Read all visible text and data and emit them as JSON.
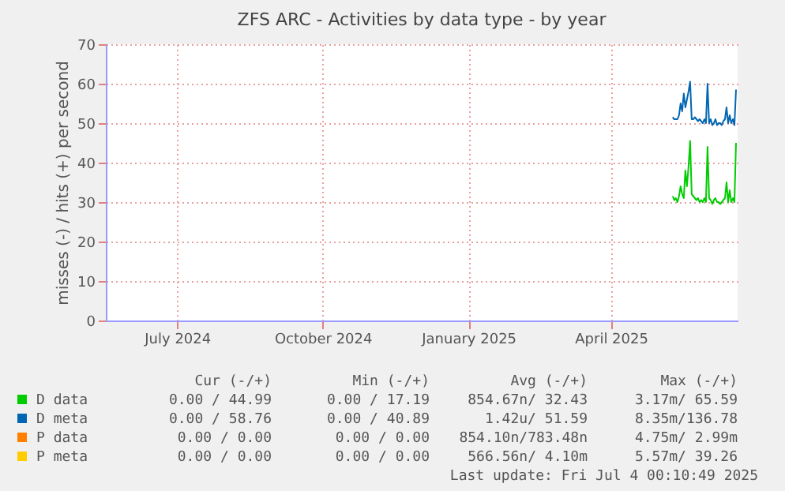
{
  "chart_data": {
    "type": "line",
    "title": "ZFS ARC - Activities by data type - by year",
    "ylabel": "misses (-) / hits (+) per second",
    "x": [
      "2025-05-25",
      "2025-05-26",
      "2025-05-27",
      "2025-05-28",
      "2025-05-29",
      "2025-05-30",
      "2025-05-31",
      "2025-06-01",
      "2025-06-02",
      "2025-06-03",
      "2025-06-04",
      "2025-06-05",
      "2025-06-06",
      "2025-06-07",
      "2025-06-08",
      "2025-06-09",
      "2025-06-10",
      "2025-06-11",
      "2025-06-12",
      "2025-06-13",
      "2025-06-14",
      "2025-06-15",
      "2025-06-16",
      "2025-06-17",
      "2025-06-18",
      "2025-06-19",
      "2025-06-20",
      "2025-06-21",
      "2025-06-22",
      "2025-06-23",
      "2025-06-24",
      "2025-06-25",
      "2025-06-26",
      "2025-06-27",
      "2025-06-28",
      "2025-06-29",
      "2025-06-30",
      "2025-07-01",
      "2025-07-02",
      "2025-07-03",
      "2025-07-04"
    ],
    "series": [
      {
        "name": "D data",
        "color": "#00cc00",
        "values": [
          31.5,
          30.5,
          31,
          30,
          31.5,
          34,
          32,
          31,
          38,
          34,
          39,
          45.5,
          32,
          31.5,
          31,
          30.5,
          31,
          30,
          30.5,
          30,
          31,
          30,
          44,
          31,
          30.5,
          29.5,
          30.5,
          31,
          30,
          30,
          29.5,
          30,
          30.5,
          31,
          35,
          30,
          33,
          30,
          31,
          30,
          45
        ]
      },
      {
        "name": "D meta",
        "color": "#0066b3",
        "values": [
          51.5,
          51,
          51,
          51,
          52,
          55,
          53,
          57.5,
          54,
          56,
          58,
          60.5,
          51,
          51,
          51.5,
          51,
          50.5,
          51,
          50.5,
          50,
          51,
          50,
          60,
          50,
          51,
          49.5,
          50,
          51,
          49.5,
          50,
          50,
          49.5,
          50.5,
          51,
          54,
          50,
          52,
          50,
          51,
          49.5,
          58.5
        ]
      },
      {
        "name": "P data",
        "color": "#ff8000",
        "values": [
          null,
          null,
          null,
          null,
          null,
          null,
          null,
          null,
          null,
          null,
          null,
          null,
          null,
          null,
          null,
          null,
          null,
          null,
          null,
          null,
          null,
          null,
          null,
          null,
          null,
          null,
          null,
          null,
          null,
          null,
          null,
          null,
          null,
          null,
          null,
          null,
          null,
          null,
          null,
          null,
          null
        ]
      },
      {
        "name": "P meta",
        "color": "#ffcc00",
        "values": [
          null,
          null,
          null,
          null,
          null,
          null,
          null,
          null,
          null,
          null,
          null,
          null,
          null,
          null,
          null,
          null,
          null,
          null,
          null,
          null,
          null,
          null,
          null,
          null,
          null,
          null,
          null,
          null,
          null,
          null,
          null,
          null,
          null,
          null,
          null,
          null,
          null,
          null,
          null,
          null,
          null
        ]
      }
    ],
    "xlim": [
      "2024-06-01",
      "2025-07-05"
    ],
    "xticks": [
      {
        "value": "2024-07-16",
        "label": "July 2024"
      },
      {
        "value": "2024-10-16",
        "label": "October 2024"
      },
      {
        "value": "2025-01-16",
        "label": "January 2025"
      },
      {
        "value": "2025-04-16",
        "label": "April 2025"
      }
    ],
    "ylim": [
      0,
      70
    ],
    "yticks": [
      0,
      10,
      20,
      30,
      40,
      50,
      60,
      70
    ],
    "grid": true,
    "legend": "bottom",
    "marker": "none",
    "line_style": "solid",
    "annotations": [
      "Cur (-/+)",
      "Min (-/+)",
      "Avg (-/+)",
      "Max (-/+)",
      "0.00 / 44.99",
      "0.00 / 17.19",
      "854.67n/ 32.43",
      "3.17m/ 65.59",
      "0.00 / 58.76",
      "0.00 / 40.89",
      "1.42u/ 51.59",
      "8.35m/136.78",
      "0.00 /  0.00",
      "0.00 /  0.00",
      "854.10n/783.48n",
      "4.75m/  2.99m",
      "0.00 /  0.00",
      "0.00 /  0.00",
      "566.56n/  4.10m",
      "5.57m/ 39.26",
      "Last update: Fri Jul  4 00:10:49 2025"
    ]
  }
}
